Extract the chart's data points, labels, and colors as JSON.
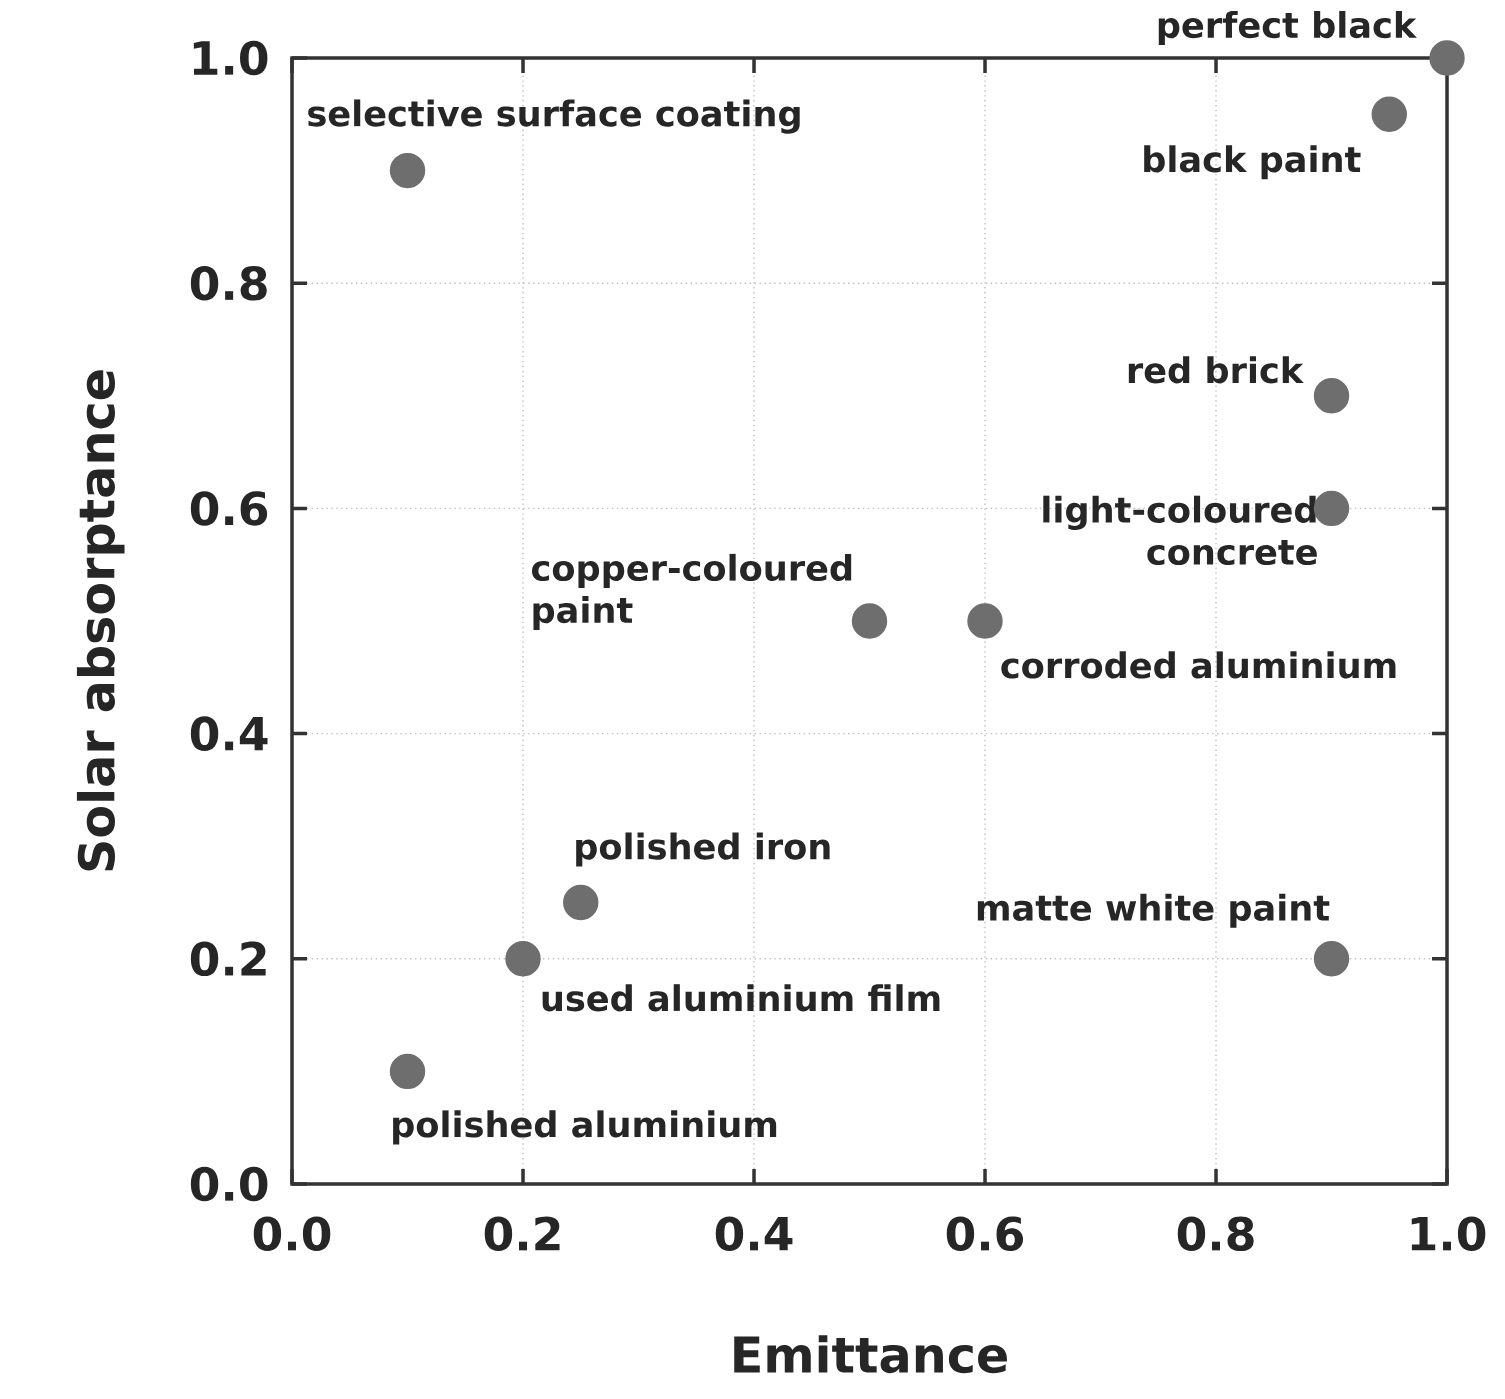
{
  "chart_data": {
    "type": "scatter",
    "xlabel": "Emittance",
    "ylabel": "Solar absorptance",
    "x": [
      0.1,
      1.0,
      0.95,
      0.9,
      0.9,
      0.5,
      0.6,
      0.25,
      0.2,
      0.9,
      0.1
    ],
    "values": [
      0.9,
      1.0,
      0.95,
      0.7,
      0.6,
      0.5,
      0.5,
      0.25,
      0.2,
      0.2,
      0.1
    ],
    "color": "#6e6e6e",
    "marker": "circle",
    "grid": true,
    "xlim": [
      0.0,
      1.0
    ],
    "ylim": [
      0.0,
      1.0
    ],
    "xticks": [
      {
        "value": 0,
        "label": "0.0"
      },
      0.2,
      0.4,
      0.6,
      0.8,
      {
        "value": 1,
        "label": "1.0"
      }
    ],
    "yticks": [
      {
        "value": 0,
        "label": "0.0"
      },
      0.2,
      0.4,
      0.6,
      0.8,
      {
        "value": 1,
        "label": "1.0"
      }
    ],
    "annotations": [
      {
        "text": "selective surface coating",
        "x": 0.1,
        "y": 0.9
      },
      {
        "text": "perfect black",
        "x": 1.0,
        "y": 1.0
      },
      {
        "text": "black paint",
        "x": 0.95,
        "y": 0.95
      },
      {
        "text": "red brick",
        "x": 0.9,
        "y": 0.7
      },
      {
        "text": "light-coloured concrete",
        "x": 0.9,
        "y": 0.6
      },
      {
        "text": "copper-coloured paint",
        "x": 0.5,
        "y": 0.5
      },
      {
        "text": "corroded aluminium",
        "x": 0.6,
        "y": 0.5
      },
      {
        "text": "polished iron",
        "x": 0.25,
        "y": 0.25
      },
      {
        "text": "used aluminium film",
        "x": 0.2,
        "y": 0.2
      },
      {
        "text": "matte white paint",
        "x": 0.9,
        "y": 0.2
      },
      {
        "text": "polished aluminium",
        "x": 0.1,
        "y": 0.1
      }
    ]
  }
}
